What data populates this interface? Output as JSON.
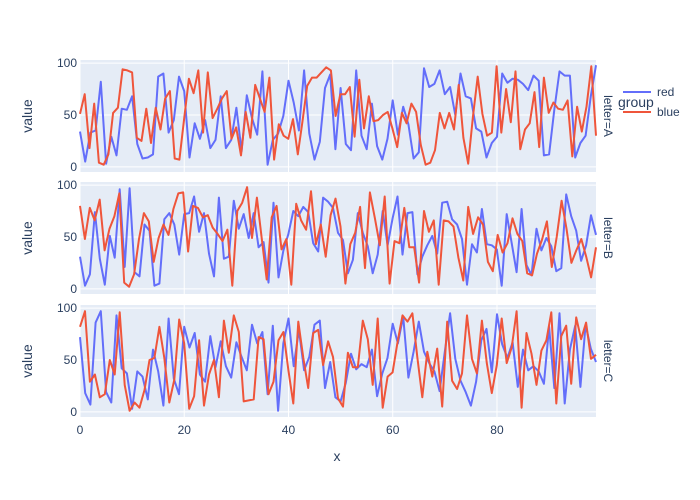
{
  "chart_data": {
    "type": "line",
    "xlabel": "x",
    "ylabel": "value",
    "xlim": [
      0,
      99
    ],
    "ylim": [
      -5,
      103
    ],
    "x_ticks": [
      0,
      20,
      40,
      60,
      80
    ],
    "y_ticks": [
      0,
      50,
      100
    ],
    "grid": true,
    "legend": {
      "title": "group",
      "placement": "right",
      "entries": [
        "red",
        "blue"
      ]
    },
    "colors": {
      "red": "#636efa",
      "blue": "#ef553b",
      "plot_bg": "#e5ecf6",
      "text": "#2a3f5f"
    },
    "facets": [
      {
        "label": "letter=A",
        "series": [
          {
            "name": "red",
            "color": "#636efa",
            "values": [
              34,
              5,
              33,
              35,
              82,
              3,
              29,
              11,
              56,
              55,
              68,
              22,
              8,
              9,
              12,
              87,
              90,
              33,
              45,
              87,
              73,
              9,
              42,
              27,
              45,
              18,
              26,
              68,
              18,
              26,
              57,
              15,
              69,
              47,
              31,
              92,
              2,
              26,
              32,
              49,
              83,
              62,
              35,
              93,
              32,
              7,
              24,
              76,
              89,
              17,
              76,
              22,
              16,
              93,
              30,
              17,
              61,
              20,
              7,
              27,
              64,
              31,
              58,
              41,
              8,
              14,
              95,
              77,
              80,
              93,
              70,
              77,
              50,
              90,
              68,
              66,
              37,
              34,
              9,
              23,
              29,
              90,
              81,
              85,
              84,
              80,
              74,
              88,
              83,
              11,
              12,
              55,
              92,
              88,
              88,
              9,
              23,
              30,
              68,
              98
            ]
          },
          {
            "name": "blue",
            "color": "#ef553b",
            "values": [
              51,
              70,
              18,
              61,
              4,
              2,
              12,
              52,
              57,
              94,
              93,
              91,
              28,
              25,
              56,
              23,
              57,
              36,
              66,
              73,
              8,
              7,
              46,
              85,
              71,
              93,
              33,
              91,
              47,
              56,
              66,
              73,
              27,
              38,
              11,
              53,
              28,
              79,
              66,
              53,
              86,
              7,
              41,
              30,
              27,
              46,
              12,
              44,
              78,
              86,
              86,
              91,
              96,
              93,
              49,
              70,
              70,
              77,
              29,
              84,
              37,
              68,
              44,
              45,
              50,
              53,
              37,
              19,
              52,
              42,
              61,
              53,
              21,
              2,
              4,
              16,
              52,
              37,
              52,
              36,
              79,
              28,
              3,
              48,
              87,
              51,
              30,
              33,
              97,
              33,
              75,
              43,
              92,
              17,
              36,
              42,
              72,
              19,
              86,
              52,
              62,
              56,
              55,
              64,
              10,
              58,
              34,
              58,
              97,
              30
            ]
          }
        ]
      },
      {
        "label": "letter=B",
        "series": [
          {
            "name": "red",
            "color": "#636efa",
            "values": [
              31,
              3,
              14,
              74,
              29,
              4,
              51,
              30,
              96,
              21,
              97,
              16,
              12,
              62,
              56,
              3,
              5,
              67,
              73,
              62,
              33,
              72,
              73,
              89,
              55,
              73,
              34,
              12,
              88,
              29,
              31,
              85,
              58,
              72,
              49,
              73,
              40,
              45,
              6,
              83,
              11,
              37,
              53,
              75,
              70,
              79,
              74,
              44,
              36,
              88,
              84,
              78,
              54,
              47,
              15,
              28,
              73,
              54,
              41,
              15,
              33,
              75,
              42,
              68,
              89,
              33,
              73,
              74,
              14,
              31,
              42,
              51,
              34,
              83,
              84,
              67,
              62,
              48,
              4,
              43,
              35,
              77,
              43,
              42,
              38,
              3,
              72,
              44,
              16,
              77,
              23,
              13,
              58,
              37,
              49,
              41,
              17,
              20,
              91,
              70,
              56,
              27,
              42,
              71,
              52
            ]
          },
          {
            "name": "blue",
            "color": "#ef553b",
            "values": [
              80,
              48,
              78,
              66,
              86,
              37,
              58,
              70,
              92,
              6,
              2,
              14,
              48,
              73,
              65,
              26,
              49,
              62,
              52,
              77,
              92,
              93,
              36,
              80,
              78,
              69,
              71,
              59,
              53,
              46,
              57,
              3,
              75,
              83,
              98,
              49,
              88,
              48,
              9,
              69,
              80,
              38,
              48,
              4,
              82,
              66,
              57,
              94,
              43,
              62,
              31,
              71,
              87,
              60,
              5,
              43,
              54,
              79,
              20,
              93,
              68,
              42,
              89,
              5,
              46,
              44,
              78,
              40,
              40,
              6,
              75,
              55,
              66,
              4,
              66,
              65,
              60,
              30,
              8,
              79,
              53,
              69,
              62,
              26,
              17,
              52,
              35,
              44,
              68,
              53,
              46,
              15,
              13,
              34,
              47,
              65,
              21,
              50,
              85,
              58,
              25,
              37,
              48,
              31,
              11,
              40
            ]
          }
        ]
      },
      {
        "label": "letter=C",
        "series": [
          {
            "name": "red",
            "color": "#636efa",
            "values": [
              72,
              18,
              7,
              86,
              97,
              19,
              9,
              93,
              42,
              37,
              3,
              39,
              34,
              12,
              60,
              39,
              6,
              90,
              32,
              17,
              82,
              62,
              76,
              36,
              29,
              73,
              43,
              68,
              44,
              33,
              67,
              53,
              40,
              84,
              66,
              77,
              17,
              83,
              1,
              66,
              90,
              44,
              79,
              40,
              53,
              84,
              88,
              23,
              48,
              14,
              10,
              28,
              56,
              41,
              46,
              43,
              60,
              15,
              37,
              52,
              85,
              66,
              92,
              33,
              58,
              87,
              58,
              47,
              39,
              20,
              58,
              95,
              51,
              30,
              19,
              6,
              29,
              69,
              80,
              38,
              94,
              65,
              52,
              67,
              24,
              60,
              40,
              44,
              39,
              27,
              82,
              23,
              95,
              8,
              60,
              83,
              24,
              84,
              61,
              48
            ]
          },
          {
            "name": "blue",
            "color": "#ef553b",
            "values": [
              82,
              97,
              29,
              36,
              14,
              17,
              50,
              36,
              96,
              26,
              1,
              9,
              4,
              21,
              50,
              52,
              82,
              52,
              9,
              31,
              89,
              66,
              3,
              15,
              69,
              6,
              36,
              50,
              14,
              88,
              57,
              93,
              77,
              10,
              11,
              12,
              72,
              70,
              17,
              29,
              69,
              77,
              40,
              8,
              87,
              52,
              23,
              76,
              79,
              45,
              68,
              53,
              13,
              5,
              57,
              43,
              43,
              88,
              70,
              26,
              90,
              4,
              34,
              38,
              67,
              93,
              87,
              95,
              52,
              14,
              58,
              34,
              61,
              5,
              87,
              30,
              22,
              37,
              93,
              51,
              37,
              88,
              47,
              18,
              45,
              90,
              47,
              62,
              97,
              4,
              76,
              56,
              26,
              59,
              69,
              96,
              8,
              73,
              83,
              27,
              91,
              70,
              86,
              51,
              55
            ]
          }
        ]
      }
    ]
  }
}
